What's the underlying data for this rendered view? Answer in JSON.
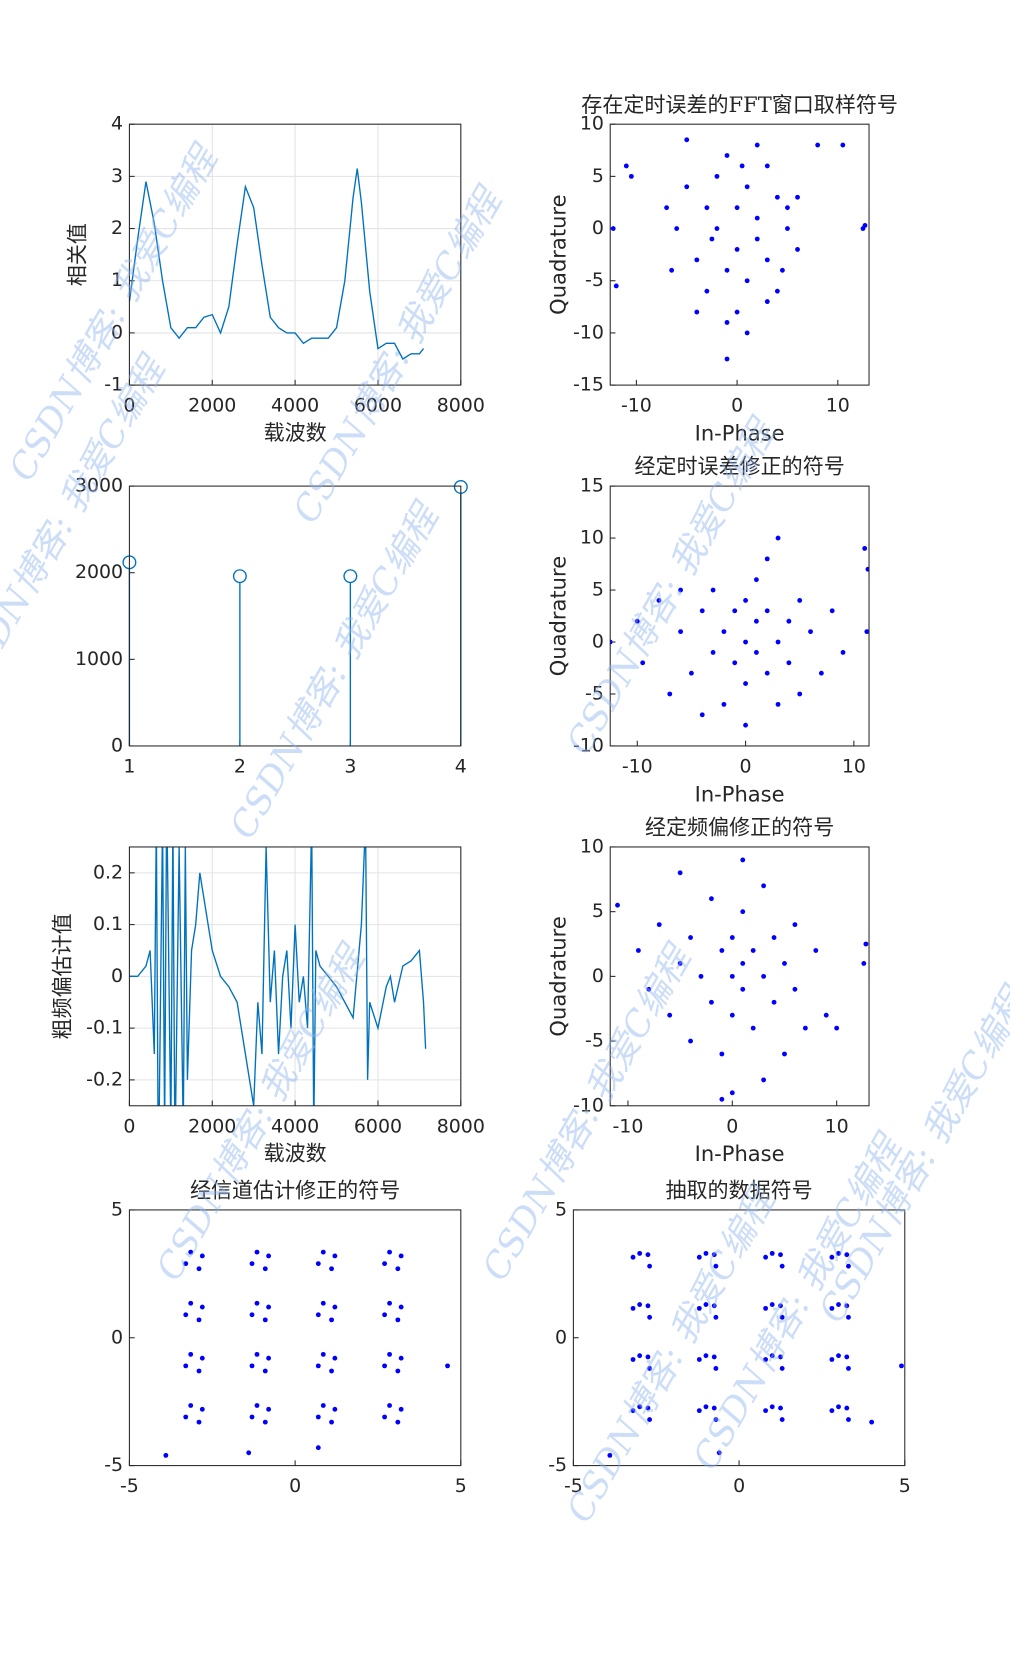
{
  "watermark": "CSDN博客: 我爱C编程",
  "chart_data": [
    {
      "type": "line",
      "xlabel": "载波数",
      "ylabel": "相关值",
      "color": "#0072bd",
      "grid": true,
      "x": [
        0,
        200,
        400,
        600,
        800,
        1000,
        1200,
        1400,
        1600,
        1800,
        2000,
        2200,
        2400,
        2600,
        2800,
        3000,
        3200,
        3400,
        3600,
        3800,
        4000,
        4200,
        4400,
        4600,
        4800,
        5000,
        5200,
        5400,
        5500,
        5600,
        5800,
        6000,
        6200,
        6400,
        6600,
        6800,
        7000,
        7100
      ],
      "y": [
        0.6,
        1.8,
        2.9,
        2.1,
        1.0,
        0.1,
        -0.1,
        0.1,
        0.1,
        0.3,
        0.35,
        0.0,
        0.5,
        1.7,
        2.8,
        2.4,
        1.3,
        0.3,
        0.1,
        0.0,
        0.0,
        -0.2,
        -0.1,
        -0.1,
        -0.1,
        0.1,
        1.0,
        2.6,
        3.15,
        2.5,
        0.8,
        -0.3,
        -0.2,
        -0.2,
        -0.5,
        -0.4,
        -0.4,
        -0.3
      ],
      "xlim": [
        0,
        8000
      ],
      "ylim": [
        -1,
        4
      ],
      "xticks": [
        0,
        2000,
        4000,
        6000,
        8000
      ],
      "yticks": [
        -1,
        0,
        1,
        2,
        3,
        4
      ]
    },
    {
      "type": "scatter",
      "title": "存在定时误差的FFT窗口取样符号",
      "xlabel": "In-Phase",
      "ylabel": "Quadrature",
      "color": "#0000ff",
      "grid": false,
      "x": [
        -11,
        -12,
        -12.3,
        -10.5,
        8,
        10.5,
        -5,
        -1,
        1,
        12.5,
        12.7,
        -6,
        -5,
        -4,
        -3,
        -3,
        -2,
        -2,
        -1,
        -1,
        0,
        0,
        0,
        1,
        1,
        2,
        2,
        3,
        3,
        4,
        4,
        5,
        5,
        6,
        -4,
        -1,
        2,
        3,
        -7,
        6,
        0.5,
        -2.5,
        4.5,
        -6.5
      ],
      "y": [
        6,
        -5.5,
        0,
        5,
        8,
        8,
        8.5,
        -12.5,
        -10,
        0,
        0.3,
        0,
        4,
        -3,
        2,
        -6,
        5,
        0,
        -4,
        7,
        2,
        -2,
        -8,
        4,
        -5,
        1,
        -1,
        6,
        -3,
        3,
        -6,
        0,
        2,
        -2,
        -8,
        -9,
        8,
        -7,
        2,
        3,
        6,
        -1,
        -4,
        -4
      ],
      "xlim": [
        -12.6,
        13.1
      ],
      "ylim": [
        -15,
        10
      ],
      "xticks": [
        -10,
        0,
        10
      ],
      "yticks": [
        -15,
        -10,
        -5,
        0,
        5,
        10
      ]
    },
    {
      "type": "stem",
      "color": "#0072bd",
      "grid": false,
      "x": [
        1,
        2,
        3,
        4
      ],
      "y": [
        2120,
        1960,
        1960,
        2990
      ],
      "xlim": [
        1,
        4
      ],
      "ylim": [
        0,
        3000
      ],
      "xticks": [
        1,
        2,
        3,
        4
      ],
      "yticks": [
        0,
        1000,
        2000,
        3000
      ]
    },
    {
      "type": "scatter",
      "title": "经定时误差修正的符号",
      "xlabel": "In-Phase",
      "ylabel": "Quadrature",
      "color": "#0000ff",
      "grid": false,
      "x": [
        -12.5,
        -10,
        -9.5,
        -8,
        -7,
        -6,
        -5,
        -4,
        -3,
        -3,
        -2,
        -2,
        -1,
        -1,
        0,
        0,
        0,
        0,
        1,
        1,
        1,
        2,
        2,
        3,
        3,
        3,
        4,
        4,
        5,
        5,
        6,
        7,
        8,
        9,
        11,
        11.3,
        11.2,
        -4,
        2,
        -6
      ],
      "y": [
        0,
        2,
        -2,
        4,
        -5,
        1,
        -3,
        3,
        -1,
        5,
        -6,
        1,
        3,
        -2,
        0,
        4,
        -4,
        -8,
        2,
        -1,
        6,
        -3,
        3,
        0,
        -6,
        10,
        2,
        -2,
        -5,
        4,
        1,
        -3,
        3,
        -1,
        9,
        7,
        1,
        -7,
        8,
        5
      ],
      "xlim": [
        -12.5,
        11.4
      ],
      "ylim": [
        -10,
        15
      ],
      "xticks": [
        -10,
        0,
        10
      ],
      "yticks": [
        -10,
        -5,
        0,
        5,
        10,
        15
      ]
    },
    {
      "type": "line",
      "xlabel": "载波数",
      "ylabel": "粗频偏估计值",
      "color": "#0072bd",
      "grid": true,
      "x": [
        0,
        200,
        400,
        500,
        600,
        650,
        700,
        800,
        850,
        900,
        1000,
        1050,
        1100,
        1200,
        1300,
        1350,
        1400,
        1500,
        1600,
        1700,
        1800,
        2000,
        2200,
        2400,
        2600,
        2800,
        3000,
        3100,
        3200,
        3300,
        3400,
        3500,
        3600,
        3700,
        3800,
        3900,
        4000,
        4100,
        4200,
        4300,
        4400,
        4450,
        4500,
        4600,
        4800,
        5000,
        5200,
        5400,
        5600,
        5700,
        5750,
        5800,
        6000,
        6200,
        6300,
        6400,
        6600,
        6800,
        7000,
        7100,
        7150
      ],
      "y": [
        0,
        0,
        0.02,
        0.05,
        -0.15,
        0.3,
        -0.4,
        0.3,
        -0.3,
        0.35,
        -0.3,
        0.3,
        -0.35,
        0.25,
        -0.3,
        0.25,
        -0.2,
        0.05,
        0.1,
        0.2,
        0.15,
        0.05,
        0,
        -0.02,
        -0.05,
        -0.15,
        -0.25,
        -0.05,
        -0.15,
        0.25,
        -0.05,
        0.05,
        -0.15,
        0,
        0.05,
        -0.1,
        0.1,
        -0.05,
        0,
        -0.1,
        0.3,
        -0.3,
        0.05,
        0.02,
        0,
        -0.02,
        -0.05,
        -0.08,
        0.1,
        0.3,
        -0.2,
        -0.05,
        -0.1,
        -0.02,
        0,
        -0.05,
        0.02,
        0.03,
        0.05,
        -0.05,
        -0.14
      ],
      "xlim": [
        0,
        8000
      ],
      "ylim": [
        -0.25,
        0.25
      ],
      "xticks": [
        0,
        2000,
        4000,
        6000,
        8000
      ],
      "yticks": [
        -0.2,
        -0.1,
        0,
        0.1,
        0.2
      ]
    },
    {
      "type": "scatter",
      "title": "经定频偏修正的符号",
      "xlabel": "In-Phase",
      "ylabel": "Quadrature",
      "color": "#0000ff",
      "grid": false,
      "x": [
        -11,
        -9,
        -8,
        -7,
        -6,
        -5,
        -4,
        -4,
        -3,
        -2,
        -2,
        -1,
        -1,
        0,
        0,
        0,
        0,
        1,
        1,
        1,
        2,
        2,
        3,
        3,
        4,
        4,
        5,
        5,
        6,
        6,
        7,
        8,
        9,
        10,
        12.8,
        12.6,
        -5,
        1,
        -1,
        3
      ],
      "y": [
        5.5,
        2,
        -1,
        4,
        -3,
        1,
        -5,
        3,
        0,
        6,
        -2,
        2,
        -6,
        0,
        3,
        -3,
        -9,
        1,
        -1,
        5,
        -4,
        2,
        0,
        7,
        -2,
        3,
        -6,
        1,
        4,
        -1,
        -4,
        2,
        -3,
        -4,
        2.5,
        1,
        8,
        9,
        -9.5,
        -8
      ],
      "xlim": [
        -11.7,
        13.1
      ],
      "ylim": [
        -10,
        10
      ],
      "xticks": [
        -10,
        0,
        10
      ],
      "yticks": [
        -10,
        -5,
        0,
        5,
        10
      ]
    },
    {
      "type": "scatter",
      "title": "经信道估计修正的符号",
      "color": "#0000ff",
      "grid": false,
      "x": [
        -2.8,
        -3.3,
        -2.9,
        -3.15,
        -0.8,
        -1.3,
        -0.9,
        -1.15,
        1.2,
        0.7,
        1.1,
        0.85,
        3.2,
        2.7,
        3.1,
        2.85,
        -2.8,
        -3.3,
        -2.9,
        -3.15,
        -0.8,
        -1.3,
        -0.9,
        -1.15,
        1.2,
        0.7,
        1.1,
        0.85,
        3.2,
        2.7,
        3.1,
        2.85,
        -2.8,
        -3.3,
        -2.9,
        -3.15,
        -0.8,
        -1.3,
        -0.9,
        -1.15,
        1.2,
        0.7,
        1.1,
        0.85,
        3.2,
        2.7,
        3.1,
        2.85,
        -2.8,
        -3.3,
        -2.9,
        -3.15,
        -0.8,
        -1.3,
        -0.9,
        -1.15,
        1.2,
        0.7,
        1.1,
        0.85,
        3.2,
        2.7,
        3.1,
        2.85,
        -3.9,
        -1.4,
        4.6,
        0.7
      ],
      "y": [
        3.2,
        2.9,
        2.7,
        3.35,
        3.2,
        2.9,
        2.7,
        3.35,
        3.2,
        2.9,
        2.7,
        3.35,
        3.2,
        2.9,
        2.7,
        3.35,
        1.2,
        0.9,
        0.7,
        1.35,
        1.2,
        0.9,
        0.7,
        1.35,
        1.2,
        0.9,
        0.7,
        1.35,
        1.2,
        0.9,
        0.7,
        1.35,
        -0.8,
        -1.1,
        -1.3,
        -0.65,
        -0.8,
        -1.1,
        -1.3,
        -0.65,
        -0.8,
        -1.1,
        -1.3,
        -0.65,
        -0.8,
        -1.1,
        -1.3,
        -0.65,
        -2.8,
        -3.1,
        -3.3,
        -2.65,
        -2.8,
        -3.1,
        -3.3,
        -2.65,
        -2.8,
        -3.1,
        -3.3,
        -2.65,
        -2.8,
        -3.1,
        -3.3,
        -2.65,
        -4.6,
        -4.5,
        -1.1,
        -4.3
      ],
      "xlim": [
        -5,
        5
      ],
      "ylim": [
        -5,
        5
      ],
      "xticks": [
        -5,
        0,
        5
      ],
      "yticks": [
        -5,
        0,
        5
      ]
    },
    {
      "type": "scatter",
      "title": "抽取的数据符号",
      "color": "#0000ff",
      "grid": false,
      "x": [
        -3.2,
        -2.7,
        -3,
        -2.75,
        -1.2,
        -0.7,
        -1,
        -0.75,
        0.8,
        1.3,
        1,
        1.25,
        2.8,
        3.3,
        3,
        3.25,
        -3.2,
        -2.7,
        -3,
        -2.75,
        -1.2,
        -0.7,
        -1,
        -0.75,
        0.8,
        1.3,
        1,
        1.25,
        2.8,
        3.3,
        3,
        3.25,
        -3.2,
        -2.7,
        -3,
        -2.75,
        -1.2,
        -0.7,
        -1,
        -0.75,
        0.8,
        1.3,
        1,
        1.25,
        2.8,
        3.3,
        3,
        3.25,
        -3.2,
        -2.7,
        -3,
        -2.75,
        -1.2,
        -0.7,
        -1,
        -0.75,
        0.8,
        1.3,
        1,
        1.25,
        2.8,
        3.3,
        3,
        3.25,
        -3.9,
        -0.6,
        4.9,
        4.0
      ],
      "y": [
        3.15,
        2.8,
        3.3,
        3.25,
        3.15,
        2.8,
        3.3,
        3.25,
        3.15,
        2.8,
        3.3,
        3.25,
        3.15,
        2.8,
        3.3,
        3.25,
        1.15,
        0.8,
        1.3,
        1.25,
        1.15,
        0.8,
        1.3,
        1.25,
        1.15,
        0.8,
        1.3,
        1.25,
        1.15,
        0.8,
        1.3,
        1.25,
        -0.85,
        -1.2,
        -0.7,
        -0.75,
        -0.85,
        -1.2,
        -0.7,
        -0.75,
        -0.85,
        -1.2,
        -0.7,
        -0.75,
        -0.85,
        -1.2,
        -0.7,
        -0.75,
        -2.85,
        -3.2,
        -2.7,
        -2.75,
        -2.85,
        -3.2,
        -2.7,
        -2.75,
        -2.85,
        -3.2,
        -2.7,
        -2.75,
        -2.85,
        -3.2,
        -2.7,
        -2.75,
        -4.6,
        -4.5,
        -1.1,
        -3.3
      ],
      "xlim": [
        -5,
        5
      ],
      "ylim": [
        -5,
        5
      ],
      "xticks": [
        -5,
        0,
        5
      ],
      "yticks": [
        -5,
        0,
        5
      ]
    }
  ]
}
